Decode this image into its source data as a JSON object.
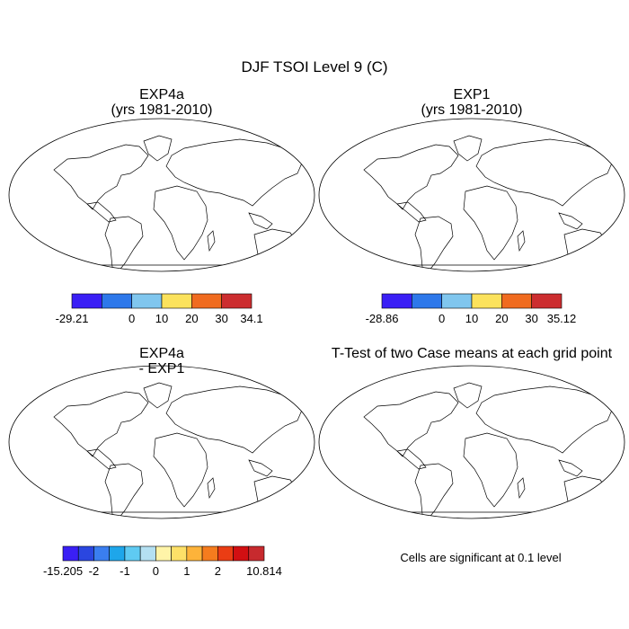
{
  "chart_data": [
    {
      "type": "heatmap",
      "figure_title": "DJF TSOI Level 9 (C)",
      "title_line1": "EXP4a",
      "title_line2": "(yrs 1981-2010)",
      "colorbar": {
        "colors": [
          "#3a1ff5",
          "#2e78ea",
          "#80c6ee",
          "#fbe25c",
          "#f06b1f",
          "#cc2d2f"
        ],
        "labels": [
          "-29.21",
          "0",
          "10",
          "20",
          "30",
          "34.1"
        ],
        "label_slots": [
          0,
          2,
          3,
          4,
          5,
          6
        ]
      }
    },
    {
      "type": "heatmap",
      "title_line1": "EXP1",
      "title_line2": "(yrs 1981-2010)",
      "colorbar": {
        "colors": [
          "#3a1ff5",
          "#2e78ea",
          "#80c6ee",
          "#fbe25c",
          "#f06b1f",
          "#cc2d2f"
        ],
        "labels": [
          "-28.86",
          "0",
          "10",
          "20",
          "30",
          "35.12"
        ],
        "label_slots": [
          0,
          2,
          3,
          4,
          5,
          6
        ]
      }
    },
    {
      "type": "heatmap",
      "title_line1": "EXP4a",
      "title_line2": "- EXP1",
      "colorbar": {
        "colors": [
          "#3a1ff5",
          "#2a46e0",
          "#3a7ef0",
          "#1ea6ea",
          "#5fcaf2",
          "#b4e0f2",
          "#fff4a8",
          "#fde068",
          "#fdb33a",
          "#f57c1e",
          "#ea3d14",
          "#d20f12",
          "#c72a2e"
        ],
        "labels": [
          "-15.205",
          "-2",
          "-1",
          "0",
          "1",
          "2",
          "10.814"
        ],
        "label_slots": [
          0,
          2,
          4,
          6,
          8,
          10,
          13
        ]
      }
    },
    {
      "type": "heatmap",
      "title_line1": "T-Test of two Case means at each grid point",
      "significance_color": "#ff0000",
      "note": "Cells are significant at 0.1 level"
    }
  ]
}
